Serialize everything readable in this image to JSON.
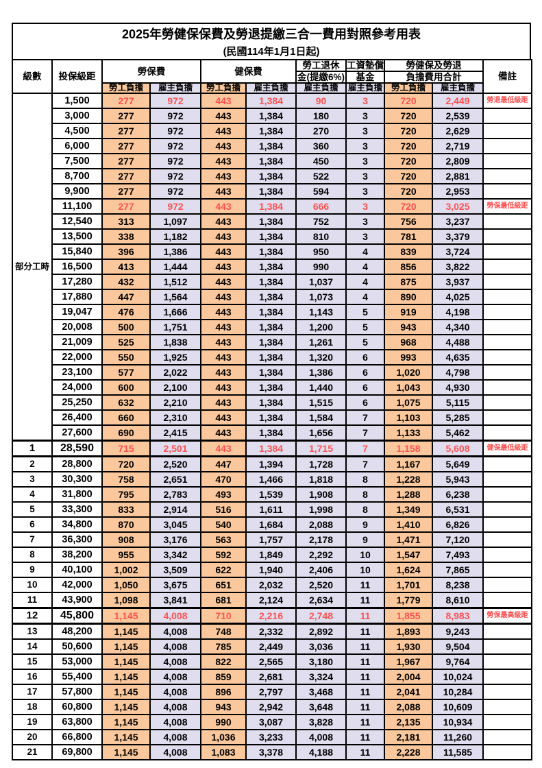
{
  "title": "2025年勞健保保費及勞退提繳三合一費用對照參考用表",
  "subtitle": "(民國114年1月1日起)",
  "header": {
    "level": "級數",
    "bracket": "投保級距",
    "labor_insurance": "勞保費",
    "health_insurance": "健保費",
    "pension_line1": "勞工退休",
    "pension_line2": "金(提繳6%)",
    "wage_fund_line1": "工資墊償",
    "wage_fund_line2": "基金",
    "total_line1": "勞健保及勞退",
    "total_line2": "負擔費用合計",
    "remark": "備註",
    "employee_burden": "勞工負擔",
    "employer_burden": "雇主負擔"
  },
  "part_time_label": "部分工時",
  "part_time_row_count": 23,
  "colors": {
    "employee_column": "#FAC89C",
    "employer_column": "#DFDDEE",
    "highlight_text": "#FF5050",
    "border": "#000000"
  },
  "row_fields": [
    "level",
    "bracket",
    "labor_employee",
    "labor_employer",
    "health_employee",
    "health_employer",
    "pension_employer",
    "wage_fund_employer",
    "total_employee",
    "total_employer",
    "remark",
    "flags"
  ],
  "rows": [
    [
      "",
      "1,500",
      "277",
      "972",
      "443",
      "1,384",
      "90",
      "3",
      "720",
      "2,449",
      "勞退最低級距",
      "hl"
    ],
    [
      "",
      "3,000",
      "277",
      "972",
      "443",
      "1,384",
      "180",
      "3",
      "720",
      "2,539",
      "",
      ""
    ],
    [
      "",
      "4,500",
      "277",
      "972",
      "443",
      "1,384",
      "270",
      "3",
      "720",
      "2,629",
      "",
      ""
    ],
    [
      "",
      "6,000",
      "277",
      "972",
      "443",
      "1,384",
      "360",
      "3",
      "720",
      "2,719",
      "",
      ""
    ],
    [
      "",
      "7,500",
      "277",
      "972",
      "443",
      "1,384",
      "450",
      "3",
      "720",
      "2,809",
      "",
      ""
    ],
    [
      "",
      "8,700",
      "277",
      "972",
      "443",
      "1,384",
      "522",
      "3",
      "720",
      "2,881",
      "",
      ""
    ],
    [
      "",
      "9,900",
      "277",
      "972",
      "443",
      "1,384",
      "594",
      "3",
      "720",
      "2,953",
      "",
      ""
    ],
    [
      "",
      "11,100",
      "277",
      "972",
      "443",
      "1,384",
      "666",
      "3",
      "720",
      "3,025",
      "勞保最低級距",
      "hl"
    ],
    [
      "",
      "12,540",
      "313",
      "1,097",
      "443",
      "1,384",
      "752",
      "3",
      "756",
      "3,237",
      "",
      ""
    ],
    [
      "",
      "13,500",
      "338",
      "1,182",
      "443",
      "1,384",
      "810",
      "3",
      "781",
      "3,379",
      "",
      ""
    ],
    [
      "",
      "15,840",
      "396",
      "1,386",
      "443",
      "1,384",
      "950",
      "4",
      "839",
      "3,724",
      "",
      ""
    ],
    [
      "",
      "16,500",
      "413",
      "1,444",
      "443",
      "1,384",
      "990",
      "4",
      "856",
      "3,822",
      "",
      ""
    ],
    [
      "",
      "17,280",
      "432",
      "1,512",
      "443",
      "1,384",
      "1,037",
      "4",
      "875",
      "3,937",
      "",
      ""
    ],
    [
      "",
      "17,880",
      "447",
      "1,564",
      "443",
      "1,384",
      "1,073",
      "4",
      "890",
      "4,025",
      "",
      ""
    ],
    [
      "",
      "19,047",
      "476",
      "1,666",
      "443",
      "1,384",
      "1,143",
      "5",
      "919",
      "4,198",
      "",
      ""
    ],
    [
      "",
      "20,008",
      "500",
      "1,751",
      "443",
      "1,384",
      "1,200",
      "5",
      "943",
      "4,340",
      "",
      ""
    ],
    [
      "",
      "21,009",
      "525",
      "1,838",
      "443",
      "1,384",
      "1,261",
      "5",
      "968",
      "4,488",
      "",
      ""
    ],
    [
      "",
      "22,000",
      "550",
      "1,925",
      "443",
      "1,384",
      "1,320",
      "6",
      "993",
      "4,635",
      "",
      ""
    ],
    [
      "",
      "23,100",
      "577",
      "2,022",
      "443",
      "1,384",
      "1,386",
      "6",
      "1,020",
      "4,798",
      "",
      ""
    ],
    [
      "",
      "24,000",
      "600",
      "2,100",
      "443",
      "1,384",
      "1,440",
      "6",
      "1,043",
      "4,930",
      "",
      ""
    ],
    [
      "",
      "25,250",
      "632",
      "2,210",
      "443",
      "1,384",
      "1,515",
      "6",
      "1,075",
      "5,115",
      "",
      ""
    ],
    [
      "",
      "26,400",
      "660",
      "2,310",
      "443",
      "1,384",
      "1,584",
      "7",
      "1,103",
      "5,285",
      "",
      ""
    ],
    [
      "",
      "27,600",
      "690",
      "2,415",
      "443",
      "1,384",
      "1,656",
      "7",
      "1,133",
      "5,462",
      "",
      ""
    ],
    [
      "1",
      "28,590",
      "715",
      "2,501",
      "443",
      "1,384",
      "1,715",
      "7",
      "1,158",
      "5,608",
      "健保最低級距",
      "hl em"
    ],
    [
      "2",
      "28,800",
      "720",
      "2,520",
      "447",
      "1,394",
      "1,728",
      "7",
      "1,167",
      "5,649",
      "",
      ""
    ],
    [
      "3",
      "30,300",
      "758",
      "2,651",
      "470",
      "1,466",
      "1,818",
      "8",
      "1,228",
      "5,943",
      "",
      ""
    ],
    [
      "4",
      "31,800",
      "795",
      "2,783",
      "493",
      "1,539",
      "1,908",
      "8",
      "1,288",
      "6,238",
      "",
      ""
    ],
    [
      "5",
      "33,300",
      "833",
      "2,914",
      "516",
      "1,611",
      "1,998",
      "8",
      "1,349",
      "6,531",
      "",
      ""
    ],
    [
      "6",
      "34,800",
      "870",
      "3,045",
      "540",
      "1,684",
      "2,088",
      "9",
      "1,410",
      "6,826",
      "",
      ""
    ],
    [
      "7",
      "36,300",
      "908",
      "3,176",
      "563",
      "1,757",
      "2,178",
      "9",
      "1,471",
      "7,120",
      "",
      ""
    ],
    [
      "8",
      "38,200",
      "955",
      "3,342",
      "592",
      "1,849",
      "2,292",
      "10",
      "1,547",
      "7,493",
      "",
      ""
    ],
    [
      "9",
      "40,100",
      "1,002",
      "3,509",
      "622",
      "1,940",
      "2,406",
      "10",
      "1,624",
      "7,865",
      "",
      ""
    ],
    [
      "10",
      "42,000",
      "1,050",
      "3,675",
      "651",
      "2,032",
      "2,520",
      "11",
      "1,701",
      "8,238",
      "",
      ""
    ],
    [
      "11",
      "43,900",
      "1,098",
      "3,841",
      "681",
      "2,124",
      "2,634",
      "11",
      "1,779",
      "8,610",
      "",
      ""
    ],
    [
      "12",
      "45,800",
      "1,145",
      "4,008",
      "710",
      "2,216",
      "2,748",
      "11",
      "1,855",
      "8,983",
      "勞保最高級距",
      "hl em"
    ],
    [
      "13",
      "48,200",
      "1,145",
      "4,008",
      "748",
      "2,332",
      "2,892",
      "11",
      "1,893",
      "9,243",
      "",
      ""
    ],
    [
      "14",
      "50,600",
      "1,145",
      "4,008",
      "785",
      "2,449",
      "3,036",
      "11",
      "1,930",
      "9,504",
      "",
      ""
    ],
    [
      "15",
      "53,000",
      "1,145",
      "4,008",
      "822",
      "2,565",
      "3,180",
      "11",
      "1,967",
      "9,764",
      "",
      ""
    ],
    [
      "16",
      "55,400",
      "1,145",
      "4,008",
      "859",
      "2,681",
      "3,324",
      "11",
      "2,004",
      "10,024",
      "",
      ""
    ],
    [
      "17",
      "57,800",
      "1,145",
      "4,008",
      "896",
      "2,797",
      "3,468",
      "11",
      "2,041",
      "10,284",
      "",
      ""
    ],
    [
      "18",
      "60,800",
      "1,145",
      "4,008",
      "943",
      "2,942",
      "3,648",
      "11",
      "2,088",
      "10,609",
      "",
      ""
    ],
    [
      "19",
      "63,800",
      "1,145",
      "4,008",
      "990",
      "3,087",
      "3,828",
      "11",
      "2,135",
      "10,934",
      "",
      ""
    ],
    [
      "20",
      "66,800",
      "1,145",
      "4,008",
      "1,036",
      "3,233",
      "4,008",
      "11",
      "2,181",
      "11,260",
      "",
      ""
    ],
    [
      "21",
      "69,800",
      "1,145",
      "4,008",
      "1,083",
      "3,378",
      "4,188",
      "11",
      "2,228",
      "11,585",
      "",
      ""
    ]
  ]
}
